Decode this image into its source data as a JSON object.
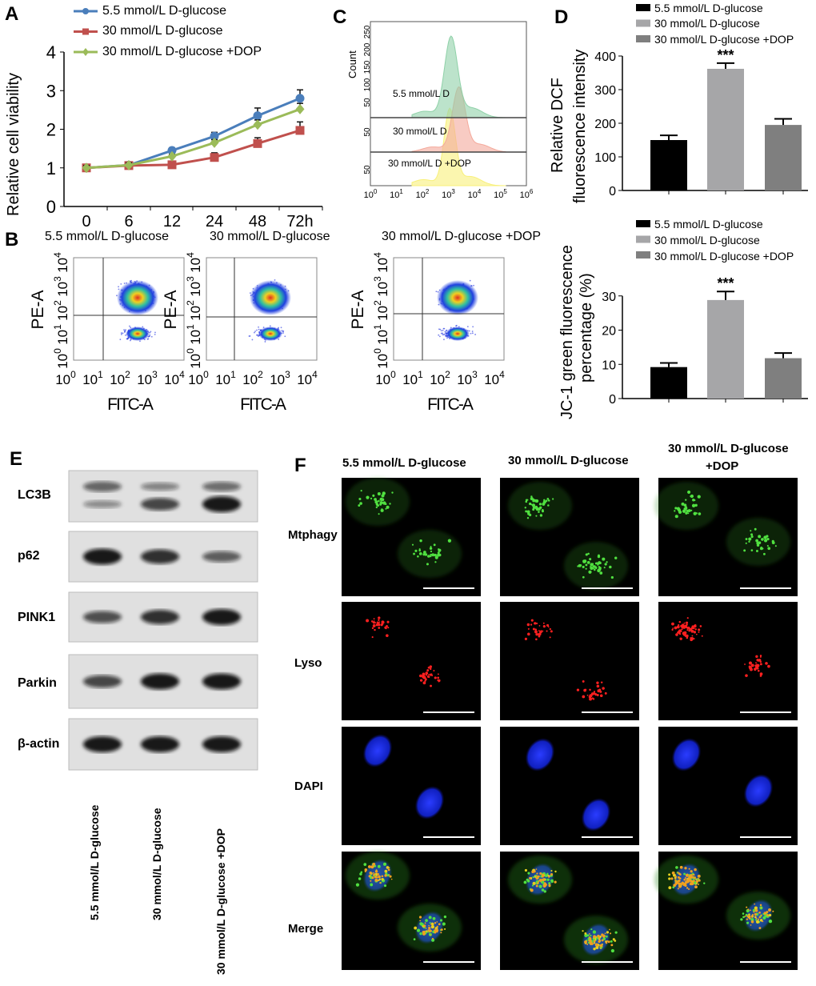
{
  "panels": {
    "A": "A",
    "B": "B",
    "C": "C",
    "D": "D",
    "E": "E",
    "F": "F"
  },
  "groups": [
    "5.5 mmol/L D-glucose",
    "30 mmol/L  D-glucose",
    "30 mmol/L  D-glucose +DOP"
  ],
  "colors": {
    "blue": "#4a7ebb",
    "red": "#c0504d",
    "green": "#9bbb59",
    "bar1": "#000000",
    "bar2": "#a6a6a8",
    "bar3": "#7f7f7f"
  },
  "chart_data": [
    {
      "id": "A",
      "type": "line",
      "ylabel": "Relative cell viability",
      "xlabel": "",
      "categories": [
        "0",
        "6",
        "12",
        "24",
        "48",
        "72h"
      ],
      "ylim": [
        0,
        4
      ],
      "yticks": [
        0,
        1,
        2,
        3,
        4
      ],
      "series": [
        {
          "name": "5.5 mmol/L D-glucose",
          "color": "#4a7ebb",
          "marker": "circle",
          "values": [
            1.0,
            1.07,
            1.45,
            1.82,
            2.35,
            2.8
          ],
          "errors": [
            0.08,
            0.08,
            0.07,
            0.1,
            0.2,
            0.22
          ]
        },
        {
          "name": "30 mmol/L  D-glucose",
          "color": "#c0504d",
          "marker": "square",
          "values": [
            1.0,
            1.06,
            1.08,
            1.27,
            1.63,
            1.97
          ],
          "errors": [
            0.08,
            0.08,
            0.05,
            0.12,
            0.15,
            0.22
          ]
        },
        {
          "name": "30 mmol/L  D-glucose +DOP",
          "color": "#9bbb59",
          "marker": "diamond",
          "values": [
            1.0,
            1.07,
            1.3,
            1.65,
            2.12,
            2.52
          ],
          "errors": [
            0.06,
            0.06,
            0.05,
            0.08,
            0.12,
            0.15
          ]
        }
      ],
      "legend": "top"
    },
    {
      "id": "D-top",
      "type": "bar",
      "ylabel": "Relative DCF fluorescence intensity",
      "ylabel_lines": [
        "Relative DCF",
        "fluorescence intensity"
      ],
      "categories": [
        "5.5 mmol/L D-glucose",
        "30 mmol/L D-glucose",
        "30 mmol/L D-glucose +DOP"
      ],
      "legend_labels": [
        "5.5 mmol/L D-glucose",
        "30 mmol/L D-glucose",
        "30 mmol/L D-glucose +DOP"
      ],
      "values": [
        150,
        362,
        195
      ],
      "errors": [
        14,
        17,
        18
      ],
      "significance": [
        "",
        "***",
        ""
      ],
      "ylim": [
        0,
        400
      ],
      "yticks": [
        0,
        100,
        200,
        300,
        400
      ],
      "legend": "top"
    },
    {
      "id": "D-bottom",
      "type": "bar",
      "ylabel": "JC-1 green fluorescence percentage (%)",
      "ylabel_lines": [
        "JC-1 green fluorescence",
        "percentage (%)"
      ],
      "categories": [
        "5.5 mmol/L D-glucose",
        "30 mmol/L D-glucose",
        "30 mmol/L D-glucose +DOP"
      ],
      "legend_labels": [
        "5.5 mmol/L D-glucose",
        "30 mmol/L D-glucose",
        "30 mmol/L D-glucose +DOP"
      ],
      "values": [
        9.2,
        28.8,
        11.8
      ],
      "errors": [
        1.2,
        2.5,
        1.5
      ],
      "significance": [
        "",
        "***",
        ""
      ],
      "ylim": [
        0,
        40
      ],
      "yticks": [
        0,
        10,
        20,
        30
      ],
      "legend": "top"
    },
    {
      "id": "C",
      "type": "area",
      "ylabel": "Count",
      "xlabel": "",
      "xticks": [
        "10^0",
        "10^1",
        "10^2",
        "10^3",
        "10^4",
        "10^5",
        "10^6"
      ],
      "yticks_top": [
        "50",
        "100",
        "150",
        "200",
        "250"
      ],
      "yticks_mid": [
        "50"
      ],
      "yticks_bot": [
        "50"
      ],
      "series": [
        {
          "name": "5.5 mmol/L D",
          "color": "#8fd1a8",
          "peak_log10": 3.1,
          "peak_count": 230
        },
        {
          "name": "30 mmol/L D",
          "color": "#f4a99b",
          "peak_log10": 3.4,
          "peak_count": 130
        },
        {
          "name": "30 mmol/L D +DOP",
          "color": "#f8f07a",
          "peak_log10": 3.05,
          "peak_count": 90
        }
      ]
    }
  ],
  "panelB": {
    "titles": [
      "5.5 mmol/L D-glucose",
      "30 mmol/L  D-glucose",
      "30 mmol/L  D-glucose +DOP"
    ],
    "ylabel": "PE-A",
    "xlabel": "FITC-A",
    "ticks": [
      "10",
      "10",
      "10",
      "10",
      "10"
    ],
    "exps": [
      "0",
      "1",
      "2",
      "3",
      "4"
    ]
  },
  "panelE": {
    "proteins": [
      "LC3B",
      "p62",
      "PINK1",
      "Parkin",
      "β-actin"
    ],
    "lanes": [
      "5.5 mmol/L D-glucose",
      "30 mmol/L  D-glucose",
      "30 mmol/L  D-glucose +DOP"
    ]
  },
  "panelF": {
    "columns": [
      "5.5 mmol/L D-glucose",
      "30 mmol/L  D-glucose",
      "30 mmol/L D-glucose",
      "+DOP"
    ],
    "rows": [
      "Mtphagy",
      "Lyso",
      "DAPI",
      "Merge"
    ]
  }
}
